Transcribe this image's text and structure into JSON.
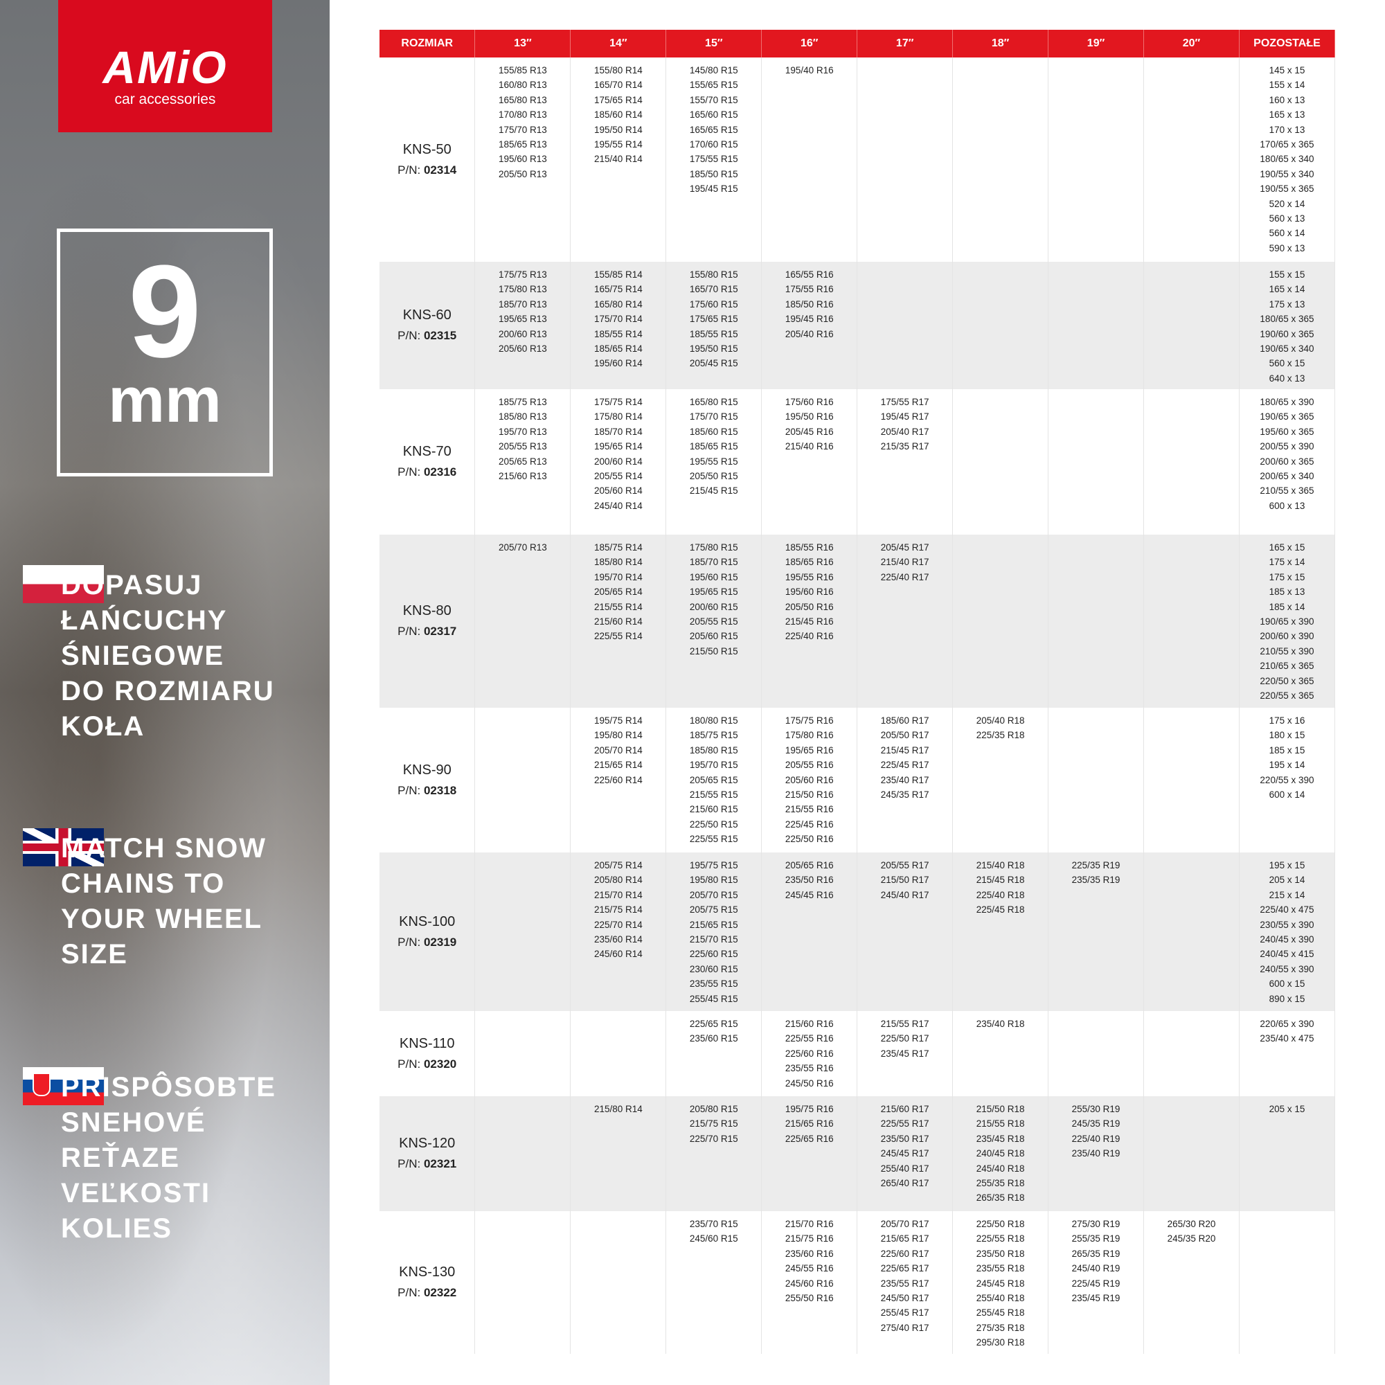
{
  "brand": {
    "logo_text": "AMiO",
    "tagline": "car accessories",
    "registered": "®",
    "color": "#d90a1e"
  },
  "thickness": {
    "value": "9",
    "unit": "mm"
  },
  "slogans": [
    {
      "lang": "pl",
      "lines": [
        "DOPASUJ",
        "ŁAŃCUCHY",
        "ŚNIEGOWE",
        "DO ROZMIARU",
        "KOŁA"
      ]
    },
    {
      "lang": "en",
      "lines": [
        "MATCH SNOW",
        "CHAINS TO",
        "YOUR WHEEL",
        "SIZE"
      ]
    },
    {
      "lang": "sk",
      "lines": [
        "PRISPÔSOBTE",
        "SNEHOVÉ",
        "REŤAZE",
        "VEĽKOSTI",
        "KOLIES"
      ]
    }
  ],
  "table": {
    "header_color": "#e2171f",
    "headers": [
      "ROZMIAR",
      "13″",
      "14″",
      "15″",
      "16″",
      "17″",
      "18″",
      "19″",
      "20″",
      "POZOSTAŁE"
    ],
    "pn_prefix": "P/N:",
    "rows": [
      {
        "model": "KNS-50",
        "pn": "02314",
        "cells": [
          [
            "155/85 R13",
            "160/80 R13",
            "165/80 R13",
            "170/80 R13",
            "175/70 R13",
            "185/65 R13",
            "195/60 R13",
            "205/50 R13"
          ],
          [
            "155/80 R14",
            "165/70 R14",
            "175/65 R14",
            "185/60 R14",
            "195/50 R14",
            "195/55 R14",
            "215/40 R14"
          ],
          [
            "145/80 R15",
            "155/65 R15",
            "155/70 R15",
            "165/60 R15",
            "165/65 R15",
            "170/60 R15",
            "175/55 R15",
            "185/50 R15",
            "195/45 R15"
          ],
          [
            "195/40 R16"
          ],
          [],
          [],
          [],
          [],
          [
            "145 x 15",
            "155 x 14",
            "160 x 13",
            "165 x 13",
            "170 x 13",
            "170/65 x 365",
            "180/65 x 340",
            "190/55 x 340",
            "190/55 x 365",
            "520 x 14",
            "560 x 13",
            "560 x 14",
            "590 x 13"
          ]
        ]
      },
      {
        "model": "KNS-60",
        "pn": "02315",
        "cells": [
          [
            "175/75 R13",
            "175/80 R13",
            "185/70 R13",
            "195/65 R13",
            "200/60 R13",
            "205/60 R13"
          ],
          [
            "155/85 R14",
            "165/75 R14",
            "165/80 R14",
            "175/70 R14",
            "185/55 R14",
            "185/65 R14",
            "195/60 R14"
          ],
          [
            "155/80 R15",
            "165/70 R15",
            "175/60 R15",
            "175/65 R15",
            "185/55 R15",
            "195/50 R15",
            "205/45 R15"
          ],
          [
            "165/55 R16",
            "175/55 R16",
            "185/50 R16",
            "195/45 R16",
            "205/40 R16"
          ],
          [],
          [],
          [],
          [],
          [
            "155 x 15",
            "165 x 14",
            "175 x 13",
            "180/65 x 365",
            "190/60 x 365",
            "190/65 x 340",
            "560 x 15",
            "640 x 13"
          ]
        ]
      },
      {
        "model": "KNS-70",
        "pn": "02316",
        "cells": [
          [
            "185/75 R13",
            "185/80 R13",
            "195/70 R13",
            "205/55 R13",
            "205/65 R13",
            "215/60 R13"
          ],
          [
            "175/75 R14",
            "175/80 R14",
            "185/70 R14",
            "195/65 R14",
            "200/60 R14",
            "205/55 R14",
            "205/60 R14",
            "245/40 R14"
          ],
          [
            "165/80 R15",
            "175/70 R15",
            "185/60 R15",
            "185/65 R15",
            "195/55 R15",
            "205/50 R15",
            "215/45 R15"
          ],
          [
            "175/60 R16",
            "195/50 R16",
            "205/45 R16",
            "215/40 R16"
          ],
          [
            "175/55 R17",
            "195/45 R17",
            "205/40 R17",
            "215/35 R17"
          ],
          [],
          [],
          [],
          [
            "180/65 x 390",
            "190/65 x 365",
            "195/60 x 365",
            "200/55 x 390",
            "200/60 x 365",
            "200/65 x 340",
            "210/55 x 365",
            "600 x 13"
          ]
        ]
      },
      {
        "model": "KNS-80",
        "pn": "02317",
        "cells": [
          [
            "205/70 R13"
          ],
          [
            "185/75 R14",
            "185/80 R14",
            "195/70 R14",
            "205/65 R14",
            "215/55 R14",
            "215/60 R14",
            "225/55 R14"
          ],
          [
            "175/80 R15",
            "185/70 R15",
            "195/60 R15",
            "195/65 R15",
            "200/60 R15",
            "205/55 R15",
            "205/60 R15",
            "215/50 R15"
          ],
          [
            "185/55 R16",
            "185/65 R16",
            "195/55 R16",
            "195/60 R16",
            "205/50 R16",
            "215/45 R16",
            "225/40 R16"
          ],
          [
            "205/45 R17",
            "215/40 R17",
            "225/40 R17"
          ],
          [],
          [],
          [],
          [
            "165 x 15",
            "175 x 14",
            "175 x 15",
            "185 x 13",
            "185 x 14",
            "190/65 x 390",
            "200/60 x 390",
            "210/55 x 390",
            "210/65 x 365",
            "220/50 x 365",
            "220/55 x 365"
          ]
        ]
      },
      {
        "model": "KNS-90",
        "pn": "02318",
        "cells": [
          [],
          [
            "195/75 R14",
            "195/80 R14",
            "205/70 R14",
            "215/65 R14",
            "225/60 R14"
          ],
          [
            "180/80 R15",
            "185/75 R15",
            "185/80 R15",
            "195/70 R15",
            "205/65 R15",
            "215/55 R15",
            "215/60 R15",
            "225/50 R15",
            "225/55 R15"
          ],
          [
            "175/75 R16",
            "175/80 R16",
            "195/65 R16",
            "205/55 R16",
            "205/60 R16",
            "215/50 R16",
            "215/55 R16",
            "225/45 R16",
            "225/50 R16"
          ],
          [
            "185/60 R17",
            "205/50 R17",
            "215/45 R17",
            "225/45 R17",
            "235/40 R17",
            "245/35 R17"
          ],
          [
            "205/40 R18",
            "225/35 R18"
          ],
          [],
          [],
          [
            "175 x 16",
            "180 x 15",
            "185 x 15",
            "195 x 14",
            "220/55 x 390",
            "600 x 14"
          ]
        ]
      },
      {
        "model": "KNS-100",
        "pn": "02319",
        "cells": [
          [],
          [
            "205/75 R14",
            "205/80 R14",
            "215/70 R14",
            "215/75 R14",
            "225/70 R14",
            "235/60 R14",
            "245/60 R14"
          ],
          [
            "195/75 R15",
            "195/80 R15",
            "205/70 R15",
            "205/75 R15",
            "215/65 R15",
            "215/70 R15",
            "225/60 R15",
            "230/60 R15",
            "235/55 R15",
            "255/45 R15"
          ],
          [
            "205/65 R16",
            "235/50 R16",
            "245/45 R16"
          ],
          [
            "205/55 R17",
            "215/50 R17",
            "245/40 R17"
          ],
          [
            "215/40 R18",
            "215/45 R18",
            "225/40 R18",
            "225/45 R18"
          ],
          [
            "225/35 R19",
            "235/35 R19"
          ],
          [],
          [
            "195 x 15",
            "205 x 14",
            "215 x 14",
            "225/40 x 475",
            "230/55 x 390",
            "240/45 x 390",
            "240/45 x 415",
            "240/55 x 390",
            "600 x 15",
            "890 x 15"
          ]
        ]
      },
      {
        "model": "KNS-110",
        "pn": "02320",
        "cells": [
          [],
          [],
          [
            "225/65 R15",
            "235/60 R15"
          ],
          [
            "215/60 R16",
            "225/55 R16",
            "225/60 R16",
            "235/55 R16",
            "245/50 R16"
          ],
          [
            "215/55 R17",
            "225/50 R17",
            "235/45 R17"
          ],
          [
            "235/40 R18"
          ],
          [],
          [],
          [
            "220/65 x 390",
            "235/40 x 475"
          ]
        ]
      },
      {
        "model": "KNS-120",
        "pn": "02321",
        "cells": [
          [],
          [
            "215/80 R14"
          ],
          [
            "205/80 R15",
            "215/75 R15",
            "225/70 R15"
          ],
          [
            "195/75 R16",
            "215/65 R16",
            "225/65 R16"
          ],
          [
            "215/60 R17",
            "225/55 R17",
            "235/50 R17",
            "245/45 R17",
            "255/40 R17",
            "265/40 R17"
          ],
          [
            "215/50 R18",
            "215/55 R18",
            "235/45 R18",
            "240/45 R18",
            "245/40 R18",
            "255/35 R18",
            "265/35 R18"
          ],
          [
            "255/30 R19",
            "245/35 R19",
            "225/40 R19",
            "235/40 R19"
          ],
          [],
          [
            "205 x 15"
          ]
        ]
      },
      {
        "model": "KNS-130",
        "pn": "02322",
        "cells": [
          [],
          [],
          [
            "235/70 R15",
            "245/60 R15"
          ],
          [
            "215/70 R16",
            "215/75 R16",
            "235/60 R16",
            "245/55 R16",
            "245/60 R16",
            "255/50 R16"
          ],
          [
            "205/70 R17",
            "215/65 R17",
            "225/60 R17",
            "225/65 R17",
            "235/55 R17",
            "245/50 R17",
            "255/45 R17",
            "275/40 R17"
          ],
          [
            "225/50 R18",
            "225/55 R18",
            "235/50 R18",
            "235/55 R18",
            "245/45 R18",
            "255/40 R18",
            "255/45 R18",
            "275/35 R18",
            "295/30 R18"
          ],
          [
            "275/30 R19",
            "255/35 R19",
            "265/35 R19",
            "245/40 R19",
            "225/45 R19",
            "235/45 R19"
          ],
          [
            "265/30 R20",
            "245/35 R20"
          ],
          []
        ]
      }
    ]
  }
}
